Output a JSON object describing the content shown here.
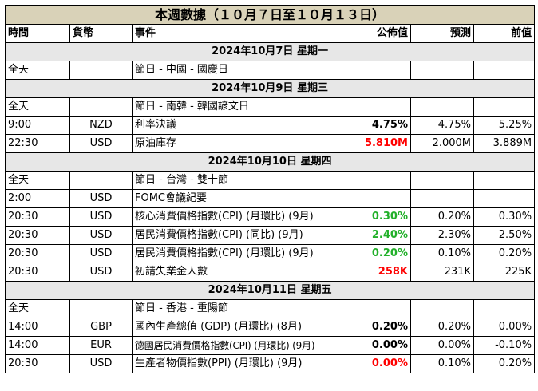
{
  "title": "本週數據（１０月７日至１０月１３日）",
  "headers": {
    "time": "時間",
    "currency": "貨幣",
    "event": "事件",
    "actual": "公佈值",
    "forecast": "預測",
    "previous": "前值"
  },
  "colors": {
    "title_bg": "#d9d2b8",
    "date_bg": "#e7e7e7",
    "up": "#22b02a",
    "down": "#ff0000"
  },
  "days": [
    {
      "date": "2024年10月7日  星期一",
      "rows": [
        {
          "time": "全天",
          "currency": "",
          "event": "節日 - 中國 - 國慶日",
          "actual": "",
          "forecast": "",
          "previous": "",
          "status": ""
        }
      ]
    },
    {
      "date": "2024年10月9日  星期三",
      "rows": [
        {
          "time": "全天",
          "currency": "",
          "event": "節日 - 南韓 - 韓國諺文日",
          "actual": "",
          "forecast": "",
          "previous": "",
          "status": ""
        },
        {
          "time": "9:00",
          "currency": "NZD",
          "event": "利率決議",
          "actual": "4.75%",
          "forecast": "4.75%",
          "previous": "5.25%",
          "status": ""
        },
        {
          "time": "22:30",
          "currency": "USD",
          "event": "原油庫存",
          "actual": "5.810M",
          "forecast": "2.000M",
          "previous": "3.889M",
          "status": "red"
        }
      ]
    },
    {
      "date": "2024年10月10日  星期四",
      "rows": [
        {
          "time": "全天",
          "currency": "",
          "event": "節日 - 台灣 - 雙十節",
          "actual": "",
          "forecast": "",
          "previous": "",
          "status": ""
        },
        {
          "time": "2:00",
          "currency": "USD",
          "event": "FOMC會議紀要",
          "actual": "",
          "forecast": "",
          "previous": "",
          "status": ""
        },
        {
          "time": "20:30",
          "currency": "USD",
          "event": "核心消費價格指數(CPI) (月環比) (9月)",
          "actual": "0.30%",
          "forecast": "0.20%",
          "previous": "0.30%",
          "status": "green"
        },
        {
          "time": "20:30",
          "currency": "USD",
          "event": "居民消費價格指數(CPI) (同比) (9月)",
          "actual": "2.40%",
          "forecast": "2.30%",
          "previous": "2.50%",
          "status": "green"
        },
        {
          "time": "20:30",
          "currency": "USD",
          "event": "居民消費價格指數(CPI) (月環比) (9月)",
          "actual": "0.20%",
          "forecast": "0.10%",
          "previous": "0.20%",
          "status": "green"
        },
        {
          "time": "20:30",
          "currency": "USD",
          "event": "初請失業金人數",
          "actual": "258K",
          "forecast": "231K",
          "previous": "225K",
          "status": "red"
        }
      ]
    },
    {
      "date": "2024年10月11日  星期五",
      "rows": [
        {
          "time": "全天",
          "currency": "",
          "event": "節日 - 香港 - 重陽節",
          "actual": "",
          "forecast": "",
          "previous": "",
          "status": ""
        },
        {
          "time": "14:00",
          "currency": "GBP",
          "event": "國內生產總值 (GDP) (月環比) (8月)",
          "actual": "0.20%",
          "forecast": "0.20%",
          "previous": "0.00%",
          "status": ""
        },
        {
          "time": "14:00",
          "currency": "EUR",
          "event": "德國居民消費價格指數(CPI) (月環比) (9月)",
          "actual": "0.00%",
          "forecast": "0.00%",
          "previous": "-0.10%",
          "status": "",
          "small": true
        },
        {
          "time": "20:30",
          "currency": "USD",
          "event": "生產者物價指數(PPI) (月環比) (9月)",
          "actual": "0.00%",
          "forecast": "0.10%",
          "previous": "0.20%",
          "status": "red"
        }
      ]
    }
  ]
}
